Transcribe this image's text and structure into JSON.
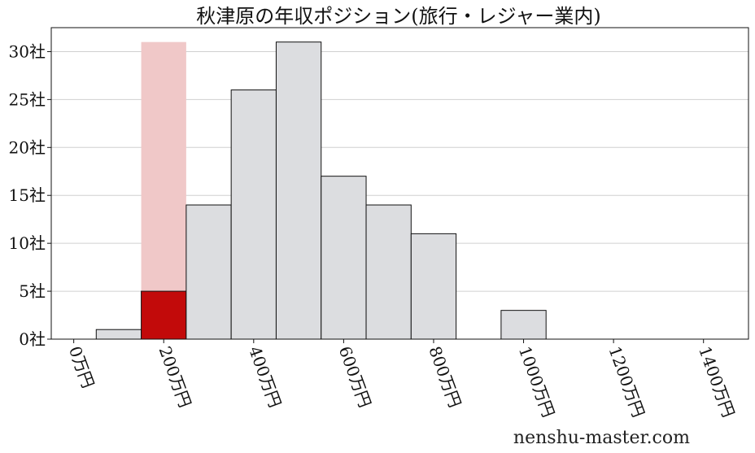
{
  "chart_data": {
    "type": "bar",
    "title": "秋津原の年収ポジション(旅行・レジャー業内)",
    "xlabel": "",
    "ylabel": "",
    "xlim": [
      -50,
      1500
    ],
    "ylim": [
      0,
      32.5
    ],
    "x_ticks": [
      0,
      200,
      400,
      600,
      800,
      1000,
      1200,
      1400
    ],
    "x_tick_labels": [
      "0万円",
      "200万円",
      "400万円",
      "600万円",
      "800万円",
      "1000万円",
      "1200万円",
      "1400万円"
    ],
    "y_ticks": [
      0,
      5,
      10,
      15,
      20,
      25,
      30
    ],
    "y_tick_labels": [
      "0社",
      "5社",
      "10社",
      "15社",
      "20社",
      "25社",
      "30社"
    ],
    "bin_width": 100,
    "bins": [
      {
        "x": 100,
        "value": 1
      },
      {
        "x": 200,
        "value": 5
      },
      {
        "x": 300,
        "value": 14
      },
      {
        "x": 400,
        "value": 26
      },
      {
        "x": 500,
        "value": 31
      },
      {
        "x": 600,
        "value": 17
      },
      {
        "x": 700,
        "value": 14
      },
      {
        "x": 800,
        "value": 11
      },
      {
        "x": 1000,
        "value": 3
      }
    ],
    "highlight": {
      "x": 200,
      "value": 5,
      "band_value": 31
    },
    "grid": "y",
    "colors": {
      "bar": "#dcdde0",
      "bar_edge": "#111111",
      "highlight": "#c20a0a",
      "highlight_band": "#f0c8c8",
      "grid": "#d0d0d0"
    }
  },
  "watermark": "nenshu-master.com"
}
